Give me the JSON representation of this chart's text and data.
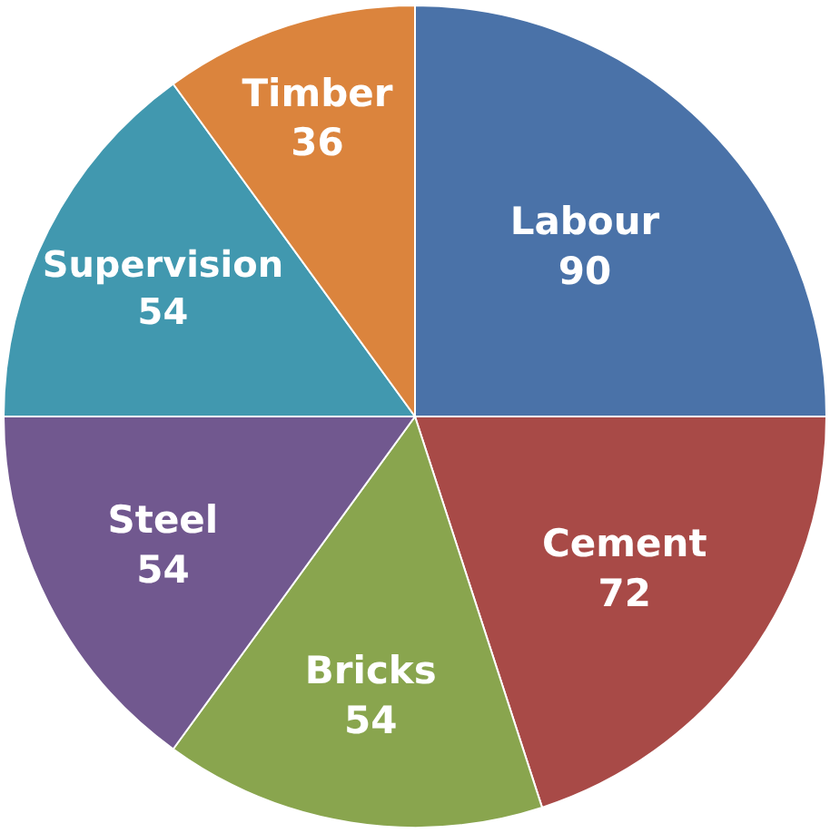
{
  "chart_data": {
    "type": "pie",
    "categories": [
      "Labour",
      "Cement",
      "Bricks",
      "Steel",
      "Supervision",
      "Timber"
    ],
    "values": [
      90,
      72,
      54,
      54,
      54,
      36
    ],
    "colors": [
      "#4a72a8",
      "#a84a47",
      "#89a54e",
      "#71588f",
      "#4198af",
      "#db843d"
    ],
    "data_labels": true,
    "legend": false
  }
}
